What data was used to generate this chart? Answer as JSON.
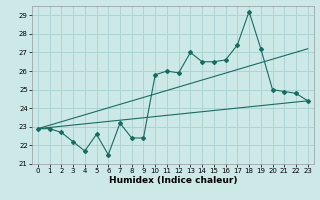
{
  "title": "",
  "xlabel": "Humidex (Indice chaleur)",
  "bg_color": "#cce9e8",
  "grid_color": "#aad4d2",
  "line_color": "#1a6b60",
  "xlim": [
    -0.5,
    23.5
  ],
  "ylim": [
    21,
    29.5
  ],
  "yticks": [
    21,
    22,
    23,
    24,
    25,
    26,
    27,
    28,
    29
  ],
  "xticks": [
    0,
    1,
    2,
    3,
    4,
    5,
    6,
    7,
    8,
    9,
    10,
    11,
    12,
    13,
    14,
    15,
    16,
    17,
    18,
    19,
    20,
    21,
    22,
    23
  ],
  "line1_x": [
    0,
    1,
    2,
    3,
    4,
    5,
    6,
    7,
    8,
    9,
    10,
    11,
    12,
    13,
    14,
    15,
    16,
    17,
    18,
    19,
    20,
    21,
    22,
    23
  ],
  "line1_y": [
    22.9,
    22.9,
    22.7,
    22.2,
    21.7,
    22.6,
    21.5,
    23.2,
    22.4,
    22.4,
    25.8,
    26.0,
    25.9,
    27.0,
    26.5,
    26.5,
    26.6,
    27.4,
    29.2,
    27.2,
    25.0,
    24.9,
    24.8,
    24.4
  ],
  "line2_x": [
    0,
    23
  ],
  "line2_y": [
    22.9,
    27.2
  ],
  "line3_x": [
    0,
    23
  ],
  "line3_y": [
    22.9,
    24.4
  ],
  "font_size_tick": 5.0,
  "font_size_xlabel": 6.5
}
